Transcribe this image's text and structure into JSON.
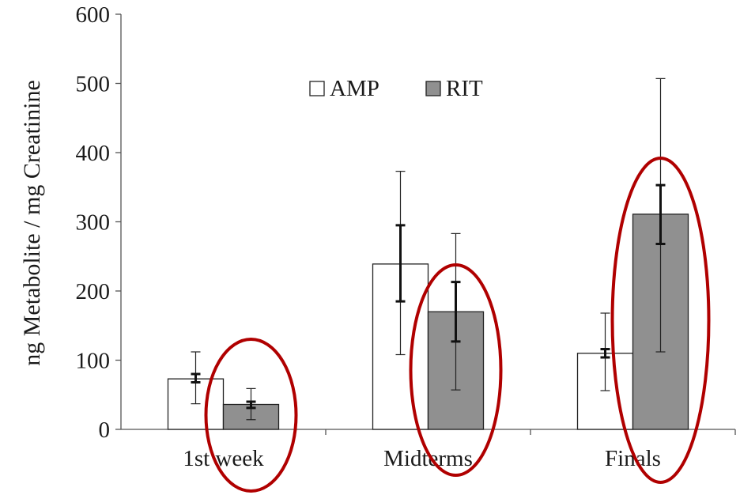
{
  "chart_data": {
    "type": "bar",
    "title": "",
    "xlabel": "",
    "ylabel": "ng Metabolite / mg Creatinine",
    "ylim": [
      0,
      600
    ],
    "yticks": [
      0,
      100,
      200,
      300,
      400,
      500,
      600
    ],
    "categories": [
      "1st week",
      "Midterms",
      "Finals"
    ],
    "legend_position": "top-center",
    "grid": false,
    "series": [
      {
        "name": "AMP",
        "fill": "#ffffff",
        "values": [
          73,
          239,
          110
        ],
        "error_inner": [
          [
            68,
            80
          ],
          [
            185,
            295
          ],
          [
            104,
            116
          ]
        ],
        "error_outer": [
          [
            37,
            112
          ],
          [
            108,
            373
          ],
          [
            56,
            168
          ]
        ]
      },
      {
        "name": "RIT",
        "fill": "#909090",
        "values": [
          36,
          170,
          311
        ],
        "error_inner": [
          [
            31,
            40
          ],
          [
            127,
            213
          ],
          [
            268,
            353
          ]
        ],
        "error_outer": [
          [
            14,
            59
          ],
          [
            57,
            283
          ],
          [
            112,
            507
          ]
        ]
      }
    ],
    "annotations": {
      "highlight_ellipses": [
        "RIT",
        "RIT",
        "RIT"
      ],
      "highlight_color": "#b00000"
    }
  }
}
